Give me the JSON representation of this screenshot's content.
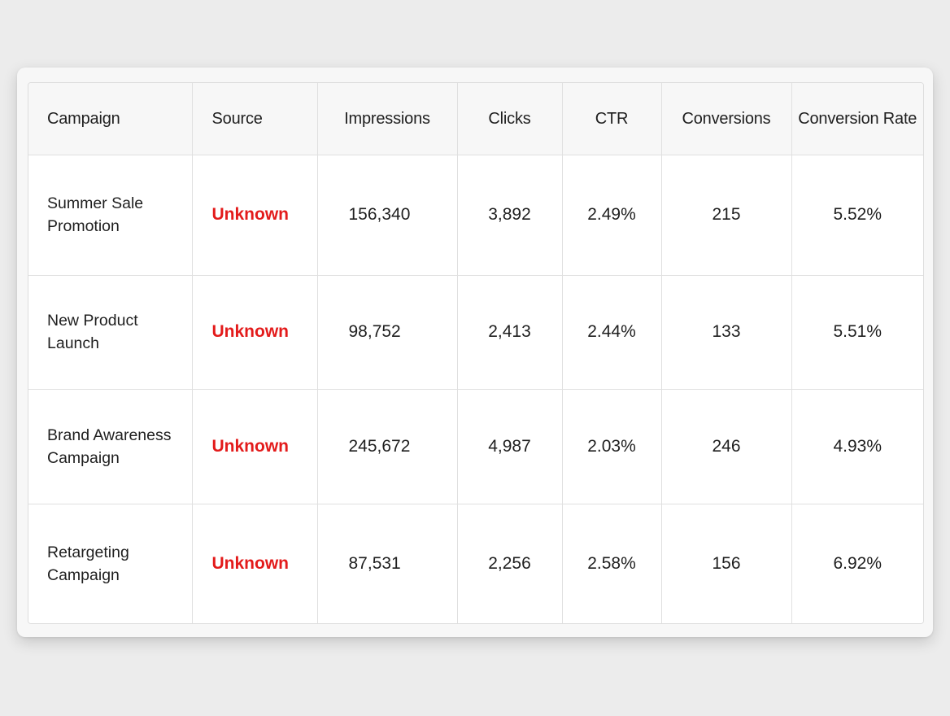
{
  "table": {
    "columns": [
      "Campaign",
      "Source",
      "Impressions",
      "Clicks",
      "CTR",
      "Conversions",
      "Conversion Rate"
    ],
    "rows": [
      {
        "campaign": [
          "Summer Sale",
          "Promotion"
        ],
        "source": "Unknown",
        "impressions": "156,340",
        "clicks": "3,892",
        "ctr": "2.49%",
        "conversions": "215",
        "conversion_rate": "5.52%"
      },
      {
        "campaign": [
          "New Product",
          "Launch"
        ],
        "source": "Unknown",
        "impressions": "98,752",
        "clicks": "2,413",
        "ctr": "2.44%",
        "conversions": "133",
        "conversion_rate": "5.51%"
      },
      {
        "campaign": [
          "Brand Awareness",
          "Campaign"
        ],
        "source": "Unknown",
        "impressions": "245,672",
        "clicks": "4,987",
        "ctr": "2.03%",
        "conversions": "246",
        "conversion_rate": "4.93%"
      },
      {
        "campaign": [
          "Retargeting",
          "Campaign"
        ],
        "source": "Unknown",
        "impressions": "87,531",
        "clicks": "2,256",
        "ctr": "2.58%",
        "conversions": "156",
        "conversion_rate": "6.92%"
      }
    ]
  },
  "colors": {
    "source_unknown": "#e31b1b",
    "header_background": "#f7f7f7",
    "page_background": "#ececec"
  }
}
